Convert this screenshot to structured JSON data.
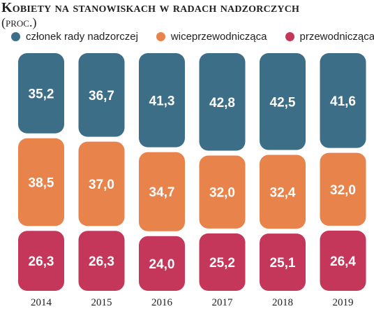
{
  "chart_data": {
    "type": "bar",
    "stacked": true,
    "title": "Kobiety na stanowiskach w radach nadzorczych",
    "subtitle": "(proc.)",
    "categories": [
      "2014",
      "2015",
      "2016",
      "2017",
      "2018",
      "2019"
    ],
    "series": [
      {
        "name": "członek rady nadzorczej",
        "color": "#3d6e88",
        "values": [
          35.2,
          36.7,
          41.3,
          42.8,
          42.5,
          41.6
        ],
        "labels": [
          "35,2",
          "36,7",
          "41,3",
          "42,8",
          "42,5",
          "41,6"
        ]
      },
      {
        "name": "wiceprzewodnicząca",
        "color": "#e8834b",
        "values": [
          38.5,
          37.0,
          34.7,
          32.0,
          32.4,
          32.0
        ],
        "labels": [
          "38,5",
          "37,0",
          "34,7",
          "32,0",
          "32,4",
          "32,0"
        ]
      },
      {
        "name": "przewodnicząca",
        "color": "#c4365a",
        "values": [
          26.3,
          26.3,
          24.0,
          25.2,
          25.1,
          26.4
        ],
        "labels": [
          "26,3",
          "26,3",
          "24,0",
          "25,2",
          "25,1",
          "26,4"
        ]
      }
    ],
    "ylim": [
      0,
      100
    ],
    "grid": false,
    "legend_position": "top"
  }
}
